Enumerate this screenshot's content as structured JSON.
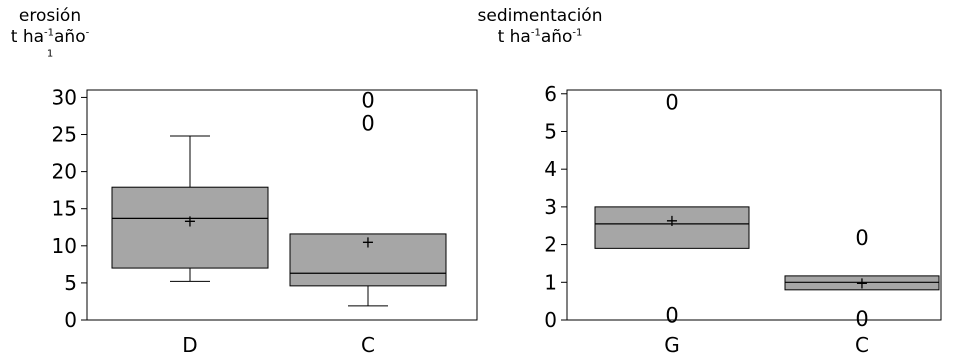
{
  "chart_data": [
    {
      "type": "box",
      "title": "erosión",
      "unit": {
        "base": "t ha",
        "exp1": "-1",
        "mid": "año",
        "exp2": "-1"
      },
      "ylim": [
        0,
        31
      ],
      "yticks": [
        "0",
        "5",
        "10",
        "15",
        "20",
        "25",
        "30"
      ],
      "grid": false,
      "categories": [
        "D",
        "C"
      ],
      "boxes": [
        {
          "name": "D",
          "min": 5.2,
          "q1": 7,
          "median": 13.7,
          "q3": 17.9,
          "max": 24.8,
          "mean": 13.4,
          "outliers": []
        },
        {
          "name": "C",
          "min": 1.9,
          "q1": 4.6,
          "median": 6.3,
          "q3": 11.6,
          "max": 11.6,
          "mean": 10.6,
          "outliers": [
            26.6,
            29.7
          ]
        }
      ]
    },
    {
      "type": "box",
      "title": "sedimentación",
      "unit": {
        "base": "t ha",
        "exp1": "-1",
        "mid": "año",
        "exp2": "-1"
      },
      "ylim": [
        0,
        6.1
      ],
      "yticks": [
        "0",
        "1",
        "2",
        "3",
        "4",
        "5",
        "6"
      ],
      "grid": false,
      "categories": [
        "G",
        "C"
      ],
      "boxes": [
        {
          "name": "G",
          "min": 1.9,
          "q1": 1.9,
          "median": 2.55,
          "q3": 3.0,
          "max": 3.0,
          "mean": 2.65,
          "outliers": [
            0.15,
            5.8
          ]
        },
        {
          "name": "C",
          "min": 0.8,
          "q1": 0.8,
          "median": 1.0,
          "q3": 1.17,
          "max": 1.17,
          "mean": 1.0,
          "outliers": [
            0.05,
            2.2
          ]
        }
      ]
    }
  ],
  "outlier_symbol": "0",
  "mean_symbol": "+",
  "colors": {
    "box_fill": "#a6a6a6",
    "stroke": "#000000",
    "background": "#ffffff"
  }
}
